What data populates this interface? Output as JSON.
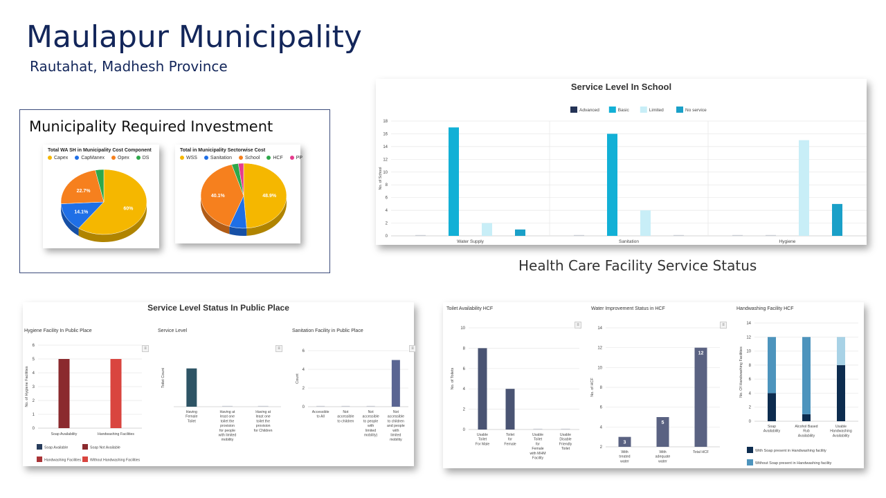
{
  "header": {
    "title": "Maulapur Municipality",
    "subtitle": "Rautahat, Madhesh Province"
  },
  "investment": {
    "section_title": "Municipality Required Investment",
    "charts": [
      {
        "title": "Total WA SH in Municipality Cost Component",
        "legend": [
          {
            "label": "Capex",
            "color": "#f5b700"
          },
          {
            "label": "CapManex",
            "color": "#1f6fe6"
          },
          {
            "label": "Opex",
            "color": "#f6801e"
          },
          {
            "label": "DS",
            "color": "#2ea84b"
          }
        ]
      },
      {
        "title": "Total in Municipality Sectorwise Cost",
        "legend": [
          {
            "label": "WSS",
            "color": "#f5b700"
          },
          {
            "label": "Sanitation",
            "color": "#1f6fe6"
          },
          {
            "label": "School",
            "color": "#f6801e"
          },
          {
            "label": "HCF",
            "color": "#2ea84b"
          },
          {
            "label": "PP",
            "color": "#e63b8d"
          }
        ]
      }
    ]
  },
  "hcf_section_title": "Health Care Facility Service Status",
  "chart_data": [
    {
      "id": "pie-cost-component",
      "type": "pie",
      "title": "Total WA SH in Municipality Cost Component",
      "categories": [
        "Capex",
        "CapManex",
        "Opex",
        "DS"
      ],
      "values": [
        60,
        14.1,
        22.7,
        3.2
      ],
      "labels": [
        "60%",
        "14.1%",
        "22.7%",
        ""
      ],
      "colors": [
        "#f5b700",
        "#1f6fe6",
        "#f6801e",
        "#2ea84b"
      ]
    },
    {
      "id": "pie-sectorwise",
      "type": "pie",
      "title": "Total in Municipality Sectorwise Cost",
      "categories": [
        "WSS",
        "Sanitation",
        "School",
        "HCF",
        "PP"
      ],
      "values": [
        48.9,
        6.5,
        40.1,
        2.5,
        2.0
      ],
      "labels": [
        "48.9%",
        "",
        "40.1%",
        "",
        ""
      ],
      "colors": [
        "#f5b700",
        "#1f6fe6",
        "#f6801e",
        "#2ea84b",
        "#e63b8d"
      ]
    },
    {
      "id": "school",
      "type": "bar",
      "title": "Service Level In School",
      "ylabel": "No. of School",
      "categories": [
        "Water Supply",
        "Sanitation",
        "Hygiene"
      ],
      "ylim": [
        0,
        18
      ],
      "yticks": [
        0,
        2,
        4,
        6,
        8,
        10,
        12,
        14,
        16,
        18
      ],
      "legend_position": "top",
      "series": [
        {
          "name": "Advanced",
          "color": "#243356",
          "values": [
            0,
            0,
            0
          ]
        },
        {
          "name": "Basic",
          "color": "#12b0d6",
          "values": [
            17,
            16,
            0
          ]
        },
        {
          "name": "Limited",
          "color": "#c8eef7",
          "values": [
            2,
            4,
            15
          ]
        },
        {
          "name": "No service",
          "color": "#1aa0c8",
          "values": [
            1,
            0,
            5
          ]
        }
      ]
    },
    {
      "id": "public-title",
      "type": "bar",
      "title": "Service Level Status In Public Place"
    },
    {
      "id": "pp-hygiene",
      "type": "bar",
      "title": "Hygiene Facility In Public Place",
      "ylabel": "No. of Hygiene Facilities",
      "categories": [
        "Soap Availability",
        "Handwashing Facilities"
      ],
      "ylim": [
        0,
        6
      ],
      "yticks": [
        0,
        1,
        2,
        3,
        4,
        5,
        6
      ],
      "series": [
        {
          "name": "Soap Available",
          "color": "#283d5c",
          "values": [
            0,
            null
          ]
        },
        {
          "name": "Soap Not Available",
          "color": "#8b2a2e",
          "values": [
            5,
            null
          ]
        },
        {
          "name": "Handwashing Facilities",
          "color": "#a93336",
          "values": [
            null,
            0
          ]
        },
        {
          "name": "Without Handwashing Facilities",
          "color": "#d9453f",
          "values": [
            null,
            5
          ]
        }
      ]
    },
    {
      "id": "pp-service",
      "type": "bar",
      "title": "Service Level",
      "ylabel": "Toilet Count",
      "categories": [
        "Having Female Toilet",
        "Having at least one toilet the provision for people with limited mobility",
        "Having at least one toilet the provision for Children"
      ],
      "ylim": [
        0,
        6
      ],
      "yticks": [],
      "series": [
        {
          "name": "Toilets",
          "color": "#2e5465",
          "values": [
            4,
            0,
            0
          ]
        }
      ]
    },
    {
      "id": "pp-sanitation",
      "type": "bar",
      "title": "Sanitation Facility in Public Place",
      "ylabel": "Count",
      "categories": [
        "Accessible to All",
        "Not accessible to children",
        "Not accessible to people with limited mobility)",
        "Not accessible to children and people with limited mobility"
      ],
      "ylim": [
        0,
        6
      ],
      "yticks": [
        0,
        2,
        4,
        6
      ],
      "series": [
        {
          "name": "Facilities",
          "color": "#5a6592",
          "values": [
            0,
            0,
            0,
            5
          ]
        }
      ]
    },
    {
      "id": "hcf-toilet",
      "type": "bar",
      "title": "Toilet Availability HCF",
      "ylabel": "No. of Toilets",
      "categories": [
        "Usable Toilet For Male",
        "Toilet for Female",
        "Usable Toilet for Female with MHM Facility",
        "Usable Disable Friendly Toilet"
      ],
      "ylim": [
        0,
        10
      ],
      "yticks": [
        0,
        2,
        4,
        6,
        8,
        10
      ],
      "series": [
        {
          "name": "Toilets",
          "color": "#4a5473",
          "values": [
            8,
            4,
            0,
            0
          ]
        }
      ]
    },
    {
      "id": "hcf-water",
      "type": "bar",
      "title": "Water Improvement Status in HCF",
      "ylabel": "No. of HCF",
      "categories": [
        "With treated water",
        "With adequate water",
        "Total HCF"
      ],
      "ylim": [
        2,
        14
      ],
      "yticks": [
        2,
        4,
        6,
        8,
        10,
        12,
        14
      ],
      "series": [
        {
          "name": "HCF",
          "color": "#5a6282",
          "values": [
            3,
            5,
            12
          ],
          "labels": [
            "3",
            "5",
            "12"
          ]
        }
      ]
    },
    {
      "id": "hcf-handwash",
      "type": "bar",
      "stacked": true,
      "title": "Handwashing Facility HCF",
      "ylabel": "No. Of Handwashing Facilities",
      "categories": [
        "Soap Availability",
        "Alcohol Based Rub Availability",
        "Usable Handwashing Availability"
      ],
      "ylim": [
        0,
        14
      ],
      "yticks": [
        0,
        2,
        4,
        6,
        8,
        10,
        12,
        14
      ],
      "series": [
        {
          "name": "With Soap present in Handwashing facility",
          "color": "#0d2c4f",
          "values": [
            4,
            1,
            8
          ]
        },
        {
          "name": "Without Soap present in Handwashing facility",
          "color": "#4d94bd",
          "values": [
            8,
            11,
            4
          ]
        }
      ],
      "top_colors": [
        "#4d94bd",
        "#4d94bd",
        "#a8d2e6"
      ]
    }
  ]
}
